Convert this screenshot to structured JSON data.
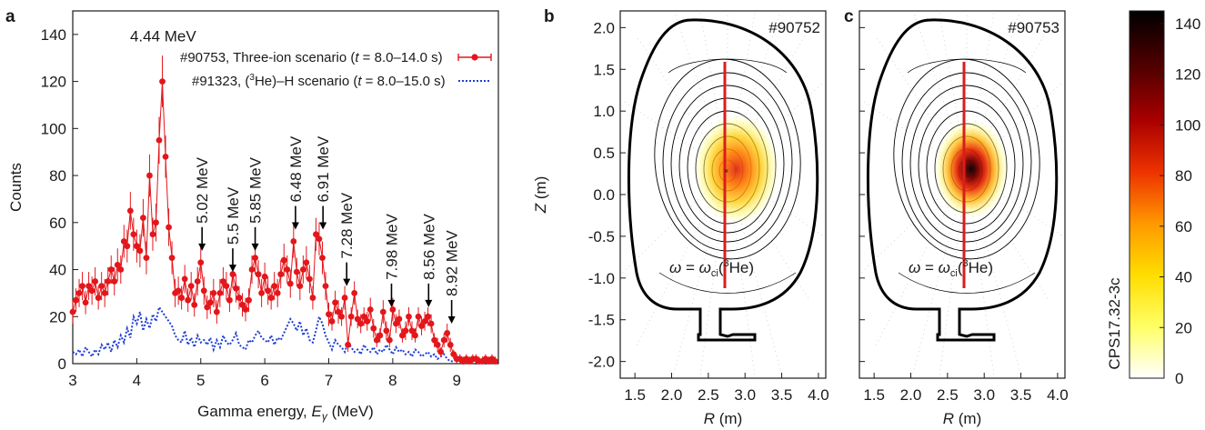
{
  "chart_data": [
    {
      "panel": "a",
      "type": "scatter",
      "xlabel": "Gamma energy, E_γ (MeV)",
      "ylabel": "Counts",
      "xlim": [
        3,
        9.65
      ],
      "ylim": [
        0,
        150
      ],
      "xticks": [
        3,
        4,
        5,
        6,
        7,
        8,
        9
      ],
      "yticks": [
        0,
        20,
        40,
        60,
        80,
        100,
        120,
        140
      ],
      "legend_position": "top-right",
      "series": [
        {
          "name": "#90753, Three-ion scenario (t = 8.0–14.0 s)",
          "style": "points-with-errorbars",
          "color": "#e3161b",
          "x": [
            3.0,
            3.05,
            3.1,
            3.15,
            3.2,
            3.25,
            3.3,
            3.35,
            3.4,
            3.45,
            3.5,
            3.55,
            3.6,
            3.65,
            3.7,
            3.75,
            3.8,
            3.85,
            3.9,
            3.95,
            4.0,
            4.05,
            4.1,
            4.15,
            4.2,
            4.25,
            4.3,
            4.35,
            4.4,
            4.45,
            4.5,
            4.55,
            4.6,
            4.65,
            4.7,
            4.75,
            4.8,
            4.85,
            4.9,
            4.95,
            5.0,
            5.05,
            5.1,
            5.15,
            5.2,
            5.25,
            5.3,
            5.35,
            5.4,
            5.45,
            5.5,
            5.55,
            5.6,
            5.65,
            5.7,
            5.75,
            5.8,
            5.85,
            5.9,
            5.95,
            6.0,
            6.05,
            6.1,
            6.15,
            6.2,
            6.25,
            6.3,
            6.35,
            6.4,
            6.45,
            6.5,
            6.55,
            6.6,
            6.65,
            6.7,
            6.75,
            6.8,
            6.85,
            6.9,
            6.95,
            7.0,
            7.05,
            7.1,
            7.15,
            7.2,
            7.25,
            7.3,
            7.35,
            7.4,
            7.45,
            7.5,
            7.55,
            7.6,
            7.65,
            7.7,
            7.75,
            7.8,
            7.85,
            7.9,
            7.95,
            8.0,
            8.05,
            8.1,
            8.15,
            8.2,
            8.25,
            8.3,
            8.35,
            8.4,
            8.45,
            8.5,
            8.55,
            8.6,
            8.65,
            8.7,
            8.75,
            8.8,
            8.85,
            8.9,
            8.95,
            9.0,
            9.05,
            9.1,
            9.15,
            9.2,
            9.25,
            9.3,
            9.35,
            9.4,
            9.45,
            9.5,
            9.55,
            9.6
          ],
          "y": [
            22,
            27,
            30,
            33,
            26,
            33,
            31,
            35,
            28,
            33,
            30,
            35,
            40,
            35,
            42,
            40,
            52,
            50,
            65,
            55,
            50,
            48,
            62,
            45,
            80,
            55,
            60,
            95,
            120,
            88,
            58,
            45,
            30,
            31,
            28,
            36,
            27,
            33,
            25,
            35,
            43,
            31,
            24,
            26,
            30,
            22,
            30,
            35,
            33,
            27,
            38,
            32,
            28,
            25,
            23,
            27,
            40,
            45,
            38,
            30,
            37,
            31,
            28,
            33,
            30,
            38,
            44,
            40,
            34,
            52,
            39,
            33,
            40,
            43,
            36,
            28,
            55,
            53,
            45,
            33,
            21,
            18,
            26,
            22,
            20,
            28,
            8,
            20,
            30,
            19,
            17,
            20,
            18,
            23,
            15,
            10,
            12,
            22,
            14,
            10,
            23,
            17,
            19,
            12,
            14,
            20,
            14,
            12,
            20,
            16,
            18,
            20,
            17,
            10,
            8,
            5,
            10,
            13,
            8,
            4,
            2,
            2,
            1,
            2,
            1,
            2,
            2,
            1,
            1,
            2,
            1,
            2,
            1
          ],
          "error": [
            5,
            5,
            6,
            6,
            5,
            6,
            6,
            6,
            5,
            6,
            6,
            6,
            6,
            6,
            7,
            6,
            7,
            7,
            8,
            7,
            7,
            7,
            8,
            7,
            9,
            7,
            8,
            10,
            11,
            9,
            8,
            7,
            6,
            6,
            5,
            6,
            5,
            6,
            5,
            6,
            7,
            6,
            5,
            5,
            6,
            5,
            6,
            6,
            6,
            5,
            6,
            6,
            5,
            5,
            5,
            5,
            6,
            7,
            6,
            6,
            6,
            6,
            5,
            6,
            6,
            6,
            7,
            6,
            6,
            7,
            6,
            6,
            6,
            7,
            6,
            5,
            7,
            7,
            7,
            6,
            5,
            4,
            5,
            5,
            4,
            5,
            3,
            4,
            5,
            4,
            4,
            4,
            4,
            5,
            4,
            3,
            3,
            5,
            4,
            3,
            5,
            4,
            4,
            3,
            4,
            4,
            4,
            3,
            4,
            4,
            4,
            4,
            4,
            3,
            3,
            2,
            3,
            4,
            3,
            2,
            2,
            2,
            2,
            2,
            2,
            2,
            2,
            2,
            2,
            2,
            2,
            2,
            2
          ]
        },
        {
          "name": "#91323, (³He)–H scenario (t = 8.0–15.0 s)",
          "style": "dotted-line",
          "color": "#1f3fd6",
          "x": [
            3.0,
            3.05,
            3.1,
            3.15,
            3.2,
            3.25,
            3.3,
            3.35,
            3.4,
            3.45,
            3.5,
            3.55,
            3.6,
            3.65,
            3.7,
            3.75,
            3.8,
            3.85,
            3.9,
            3.95,
            4.0,
            4.05,
            4.1,
            4.15,
            4.2,
            4.25,
            4.3,
            4.35,
            4.4,
            4.45,
            4.5,
            4.55,
            4.6,
            4.65,
            4.7,
            4.75,
            4.8,
            4.85,
            4.9,
            4.95,
            5.0,
            5.05,
            5.1,
            5.15,
            5.2,
            5.25,
            5.3,
            5.35,
            5.4,
            5.45,
            5.5,
            5.55,
            5.6,
            5.65,
            5.7,
            5.75,
            5.8,
            5.85,
            5.9,
            5.95,
            6.0,
            6.05,
            6.1,
            6.15,
            6.2,
            6.25,
            6.3,
            6.35,
            6.4,
            6.45,
            6.5,
            6.55,
            6.6,
            6.65,
            6.7,
            6.75,
            6.8,
            6.85,
            6.9,
            6.95,
            7.0,
            7.05,
            7.1,
            7.15,
            7.2,
            7.25,
            7.3,
            7.35,
            7.4,
            7.45,
            7.5,
            7.55,
            7.6,
            7.65,
            7.7,
            7.75,
            7.8,
            7.85,
            7.9,
            7.95,
            8.0,
            8.05,
            8.1,
            8.15,
            8.2,
            8.25,
            8.3,
            8.35,
            8.4,
            8.45,
            8.5,
            8.55,
            8.6,
            8.65,
            8.7,
            8.75,
            8.8,
            8.85,
            8.9,
            8.95,
            9.0,
            9.05,
            9.1,
            9.15,
            9.2,
            9.25,
            9.3,
            9.35,
            9.4,
            9.45,
            9.5,
            9.55,
            9.6
          ],
          "y": [
            5,
            4,
            6,
            3,
            7,
            5,
            3,
            6,
            4,
            8,
            6,
            9,
            5,
            10,
            7,
            12,
            9,
            15,
            11,
            20,
            17,
            22,
            14,
            19,
            15,
            21,
            18,
            24,
            22,
            20,
            18,
            16,
            12,
            10,
            9,
            14,
            8,
            11,
            7,
            12,
            9,
            10,
            8,
            11,
            6,
            10,
            7,
            12,
            9,
            8,
            10,
            13,
            8,
            7,
            6,
            10,
            9,
            12,
            14,
            11,
            10,
            9,
            12,
            8,
            11,
            10,
            13,
            16,
            19,
            17,
            14,
            18,
            12,
            15,
            10,
            9,
            14,
            20,
            17,
            12,
            9,
            6,
            10,
            8,
            7,
            5,
            9,
            7,
            5,
            6,
            4,
            8,
            6,
            5,
            7,
            4,
            6,
            5,
            8,
            6,
            4,
            7,
            5,
            6,
            4,
            5,
            3,
            6,
            5,
            3,
            4,
            5,
            3,
            4,
            2,
            3,
            4,
            2,
            1,
            1,
            2,
            1,
            0,
            1,
            2,
            1,
            0,
            1,
            1,
            0,
            1,
            0,
            1
          ]
        }
      ],
      "annotations": [
        {
          "label": "4.44 MeV",
          "x": 4.44,
          "y": 137,
          "arrow": false
        },
        {
          "label": "5.02 MeV",
          "x": 5.02,
          "y": 48,
          "arrow": true
        },
        {
          "label": "5.5 MeV",
          "x": 5.5,
          "y": 39,
          "arrow": true
        },
        {
          "label": "5.85 MeV",
          "x": 5.85,
          "y": 48,
          "arrow": true
        },
        {
          "label": "6.48 MeV",
          "x": 6.48,
          "y": 57,
          "arrow": true
        },
        {
          "label": "6.91 MeV",
          "x": 6.91,
          "y": 57,
          "arrow": true
        },
        {
          "label": "7.28 MeV",
          "x": 7.28,
          "y": 33,
          "arrow": true
        },
        {
          "label": "7.98 MeV",
          "x": 7.98,
          "y": 24,
          "arrow": true
        },
        {
          "label": "8.56 MeV",
          "x": 8.56,
          "y": 24,
          "arrow": true
        },
        {
          "label": "8.92 MeV",
          "x": 8.92,
          "y": 17,
          "arrow": true
        }
      ]
    },
    {
      "panel": "b",
      "type": "heatmap",
      "title": "#90752",
      "xlabel": "R (m)",
      "ylabel": "Z (m)",
      "xlim": [
        1.3,
        4.1
      ],
      "ylim": [
        -2.2,
        2.2
      ],
      "xticks": [
        1.5,
        2.0,
        2.5,
        3.0,
        3.5,
        4.0
      ],
      "yticks": [
        -2.0,
        -1.5,
        -1.0,
        -0.5,
        0.0,
        0.5,
        1.0,
        1.5,
        2.0
      ],
      "annotation": "ω = ω_ci(³He)",
      "resonance_layer_R": 2.97,
      "resonance_layer_Z": [
        -1.12,
        1.55
      ],
      "magnetic_axis": [
        2.97,
        0.25
      ],
      "emission_peak": {
        "R": 3.12,
        "Z": 0.22,
        "max": 80
      }
    },
    {
      "panel": "c",
      "type": "heatmap",
      "title": "#90753",
      "xlabel": "R (m)",
      "ylabel": "",
      "xlim": [
        1.3,
        4.1
      ],
      "ylim": [
        -2.2,
        2.2
      ],
      "xticks": [
        1.5,
        2.0,
        2.5,
        3.0,
        3.5,
        4.0
      ],
      "yticks": [
        -2.0,
        -1.5,
        -1.0,
        -0.5,
        0.0,
        0.5,
        1.0,
        1.5,
        2.0
      ],
      "annotation": "ω = ω_ci(³He)",
      "resonance_layer_R": 2.97,
      "resonance_layer_Z": [
        -1.12,
        1.55
      ],
      "magnetic_axis": [
        2.97,
        0.25
      ],
      "emission_peak": {
        "R": 3.05,
        "Z": 0.25,
        "max": 145
      }
    },
    {
      "panel": "colorbar",
      "type": "colorbar",
      "label": "CPS17.32-3c",
      "range": [
        0,
        145
      ],
      "ticks": [
        0,
        20,
        40,
        60,
        80,
        100,
        120,
        140
      ],
      "colors": [
        "#ffffff",
        "#ffff66",
        "#ffdd00",
        "#ff9900",
        "#ee3300",
        "#aa0000",
        "#550000",
        "#000000"
      ]
    }
  ],
  "panel_letters": {
    "a": "a",
    "b": "b",
    "c": "c"
  }
}
